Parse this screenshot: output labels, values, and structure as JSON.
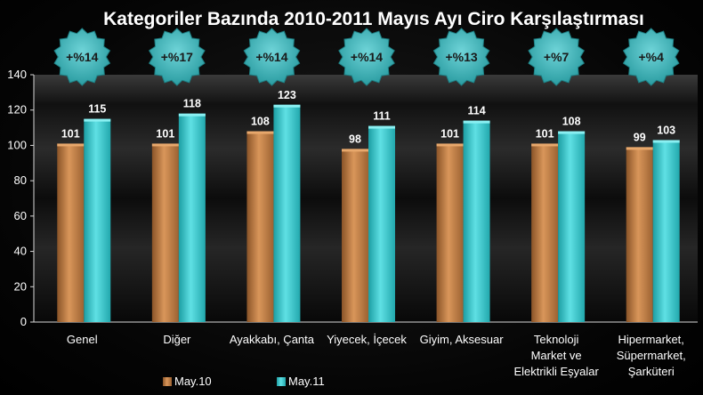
{
  "chart_data": {
    "type": "bar",
    "title": "Kategoriler Bazında 2010-2011 Mayıs Ayı Ciro Karşılaştırması",
    "categories": [
      [
        "Genel"
      ],
      [
        "Diğer"
      ],
      [
        "Ayakkabı, Çanta"
      ],
      [
        "Yiyecek, İçecek"
      ],
      [
        "Giyim, Aksesuar"
      ],
      [
        "Teknoloji",
        "Market ve",
        "Elektrikli Eşyalar"
      ],
      [
        "Hipermarket,",
        "Süpermarket,",
        "Şarküteri"
      ]
    ],
    "series": [
      {
        "name": "May.10",
        "values": [
          101,
          101,
          108,
          98,
          101,
          101,
          99
        ],
        "color": "#c8844a"
      },
      {
        "name": "May.11",
        "values": [
          115,
          118,
          123,
          111,
          114,
          108,
          103
        ],
        "color": "#3cc8cc"
      }
    ],
    "changes": [
      "+%14",
      "+%17",
      "+%14",
      "+%14",
      "+%13",
      "+%7",
      "+%4"
    ],
    "ylim": [
      0,
      140
    ],
    "yticks": [
      0,
      20,
      40,
      60,
      80,
      100,
      120,
      140
    ],
    "grid": false,
    "legend_position": "bottom-left",
    "badge_color": "#3fb6bb"
  }
}
